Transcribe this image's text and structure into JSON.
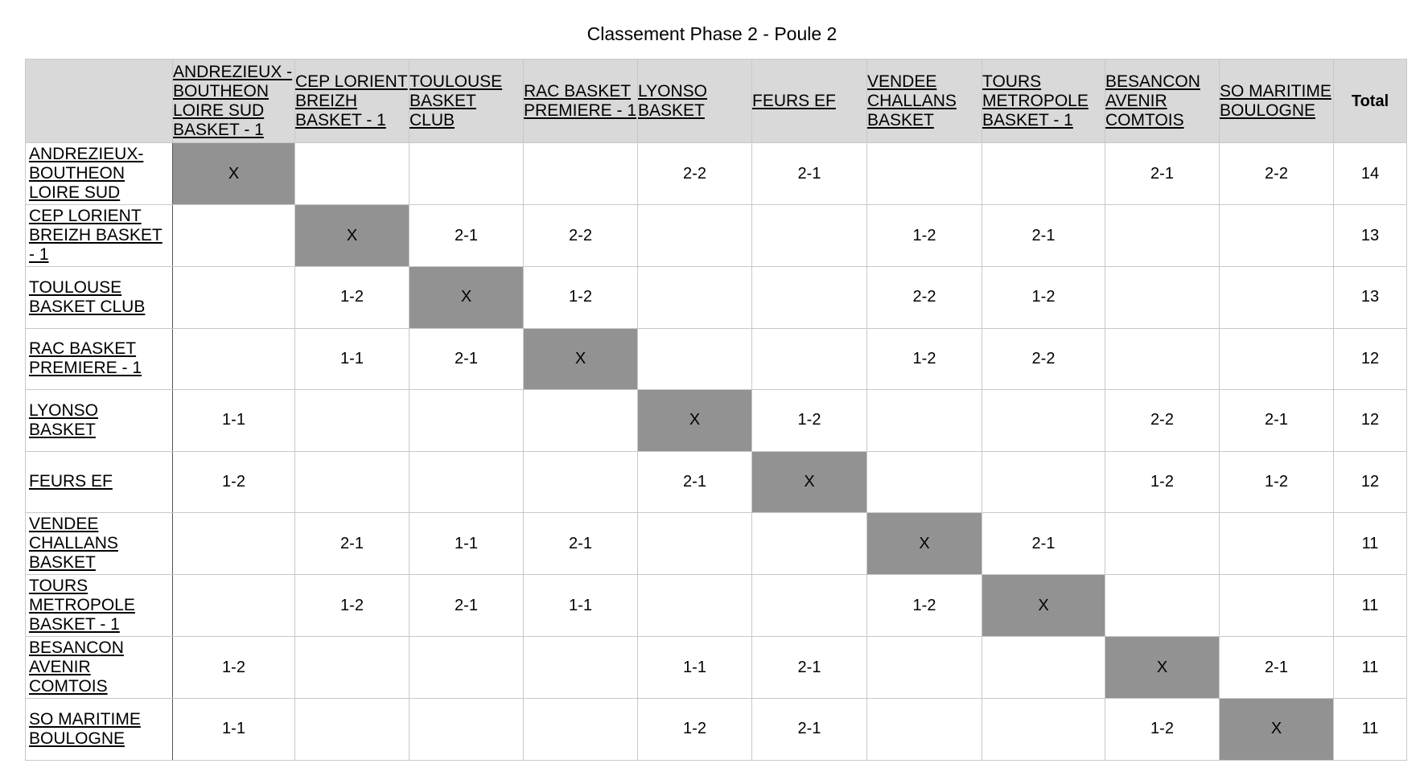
{
  "title": "Classement Phase 2 - Poule 2",
  "corner_label": "",
  "total_label": "Total",
  "columns": [
    "ANDREZIEUX -BOUTHEON LOIRE SUD BASKET - 1",
    "CEP LORIENT BREIZH BASKET - 1",
    "TOULOUSE BASKET CLUB",
    "RAC BASKET PREMIERE - 1",
    "LYONSO BASKET",
    "FEURS EF",
    "VENDEE CHALLANS BASKET",
    "TOURS METROPOLE BASKET - 1",
    "BESANCON AVENIR COMTOIS",
    "SO MARITIME BOULOGNE"
  ],
  "rows": [
    {
      "team": "ANDREZIEUX-BOUTHEON LOIRE SUD",
      "cells": [
        "X",
        "",
        "",
        "",
        "2-2",
        "2-1",
        "",
        "",
        "2-1",
        "2-2"
      ],
      "total": "14"
    },
    {
      "team": "CEP LORIENT BREIZH BASKET - 1",
      "cells": [
        "",
        "X",
        "2-1",
        "2-2",
        "",
        "",
        "1-2",
        "2-1",
        "",
        ""
      ],
      "total": "13"
    },
    {
      "team": "TOULOUSE BASKET CLUB",
      "cells": [
        "",
        "1-2",
        "X",
        "1-2",
        "",
        "",
        "2-2",
        "1-2",
        "",
        ""
      ],
      "total": "13"
    },
    {
      "team": "RAC BASKET PREMIERE - 1",
      "cells": [
        "",
        "1-1",
        "2-1",
        "X",
        "",
        "",
        "1-2",
        "2-2",
        "",
        ""
      ],
      "total": "12"
    },
    {
      "team": "LYONSO BASKET",
      "cells": [
        "1-1",
        "",
        "",
        "",
        "X",
        "1-2",
        "",
        "",
        "2-2",
        "2-1"
      ],
      "total": "12"
    },
    {
      "team": "FEURS EF",
      "cells": [
        "1-2",
        "",
        "",
        "",
        "2-1",
        "X",
        "",
        "",
        "1-2",
        "1-2"
      ],
      "total": "12"
    },
    {
      "team": "VENDEE CHALLANS BASKET",
      "cells": [
        "",
        "2-1",
        "1-1",
        "2-1",
        "",
        "",
        "X",
        "2-1",
        "",
        ""
      ],
      "total": "11"
    },
    {
      "team": "TOURS METROPOLE BASKET - 1",
      "cells": [
        "",
        "1-2",
        "2-1",
        "1-1",
        "",
        "",
        "1-2",
        "X",
        "",
        ""
      ],
      "total": "11"
    },
    {
      "team": "BESANCON AVENIR COMTOIS",
      "cells": [
        "1-2",
        "",
        "",
        "",
        "1-1",
        "2-1",
        "",
        "",
        "X",
        "2-1"
      ],
      "total": "11"
    },
    {
      "team": "SO MARITIME BOULOGNE",
      "cells": [
        "1-1",
        "",
        "",
        "",
        "1-2",
        "2-1",
        "",
        "",
        "1-2",
        "X"
      ],
      "total": "11"
    }
  ],
  "colors": {
    "header_bg": "#d9d9d9",
    "diagonal_bg": "#929292",
    "grid_line": "#c8c8c8"
  }
}
